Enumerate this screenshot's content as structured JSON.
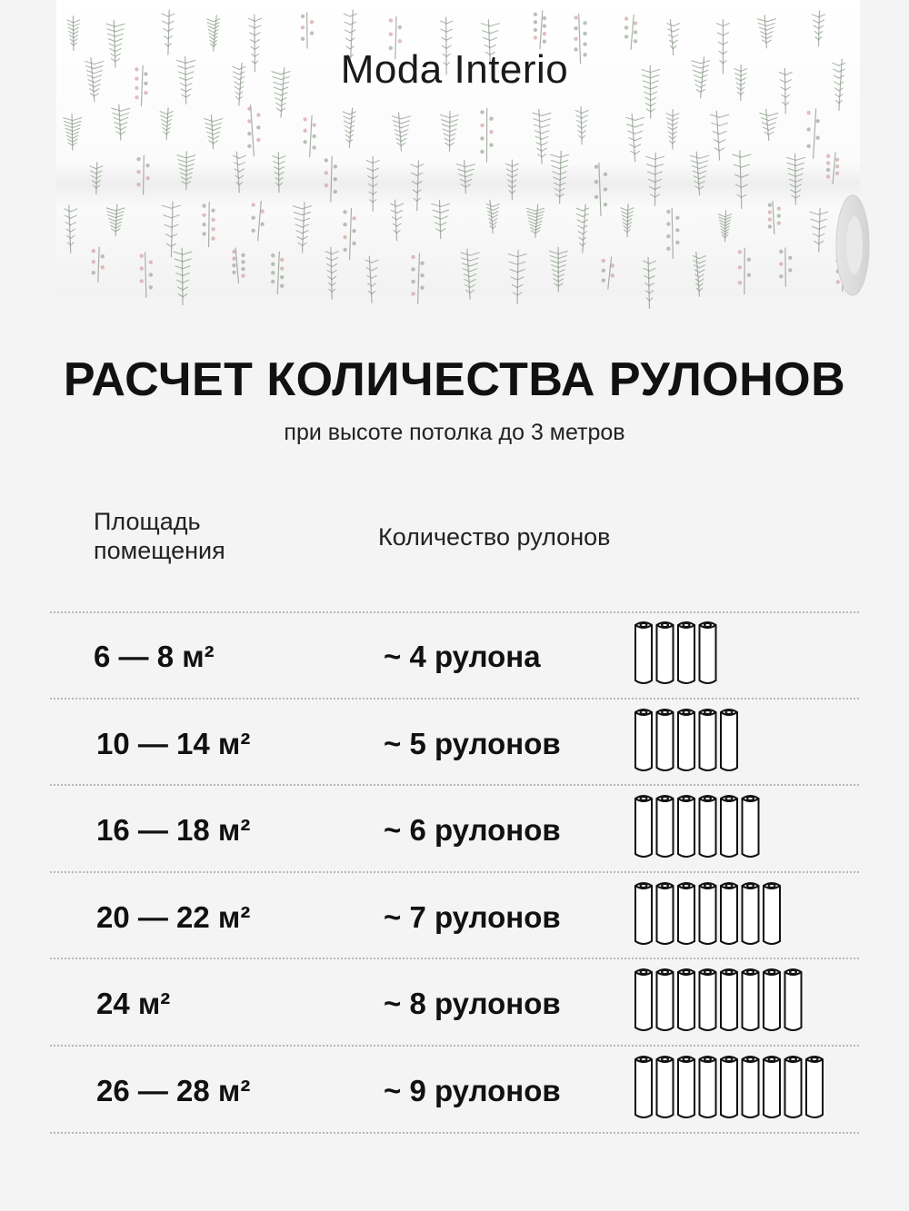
{
  "brand": "Moda Interio",
  "title": "РАСЧЕТ КОЛИЧЕСТВА РУЛОНОВ",
  "subtitle": "при высоте потолка  до 3 метров",
  "columns": {
    "area_line1": "Площадь",
    "area_line2": "помещения",
    "rolls": "Количество рулонов"
  },
  "rows": [
    {
      "area": "6 — 8 м²",
      "rolls": "~ 4 рулона",
      "count": 4
    },
    {
      "area": "10 — 14 м²",
      "rolls": "~ 5 рулонов",
      "count": 5
    },
    {
      "area": "16 — 18 м²",
      "rolls": "~ 6 рулонов",
      "count": 6
    },
    {
      "area": "20 — 22 м²",
      "rolls": "~ 7 рулонов",
      "count": 7
    },
    {
      "area": "24 м²",
      "rolls": "~ 8 рулонов",
      "count": 8
    },
    {
      "area": "26 — 28 м²",
      "rolls": "~ 9 рулонов",
      "count": 9
    }
  ],
  "colors": {
    "background": "#f4f4f4",
    "text": "#111111",
    "leaf": "#8c9a8a",
    "berry": "#c9959a"
  },
  "icons": {
    "hero": "wallpaper-roll-botanical",
    "row_icon": "wallpaper-roll-icon"
  }
}
